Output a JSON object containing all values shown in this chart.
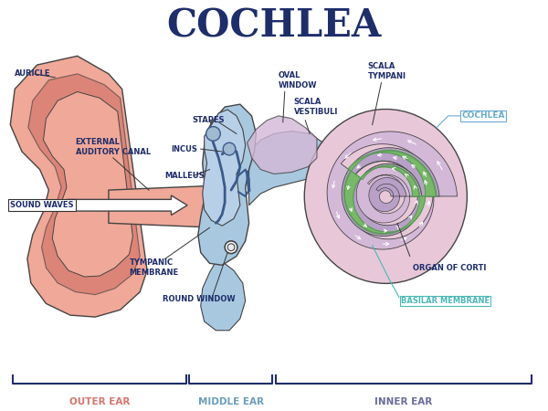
{
  "title": "COCHLEA",
  "title_color": "#1e2d6b",
  "title_fontsize": 30,
  "background_color": "#ffffff",
  "outer_ear_label": "OUTER EAR",
  "middle_ear_label": "MIDDLE EAR",
  "inner_ear_label": "INNER EAR",
  "outer_ear_color": "#d4756b",
  "middle_ear_color": "#6a9dbf",
  "inner_ear_color": "#6b6b9e",
  "label_fontsize": 6.0,
  "label_color": "#1e2d6b",
  "cochlea_label_color": "#6aabcf",
  "basilar_color": "#4ab8b8",
  "section_colors": {
    "auricle_fill": "#f0a898",
    "auricle_inner": "#d4756b",
    "auricle_deep": "#c86b5e",
    "canal_fill": "#f0a898",
    "middle_fill": "#a8c8e0",
    "middle_tube": "#90b8d8",
    "ossicle_fill": "#b8cfe8",
    "cochlea_pink_outer": "#e8c8d8",
    "cochlea_purple": "#b8a0c8",
    "cochlea_lavender": "#d4b8d8",
    "cochlea_green": "#78b868",
    "cochlea_green2": "#5a9a5a",
    "white": "#ffffff",
    "line": "#444444"
  }
}
